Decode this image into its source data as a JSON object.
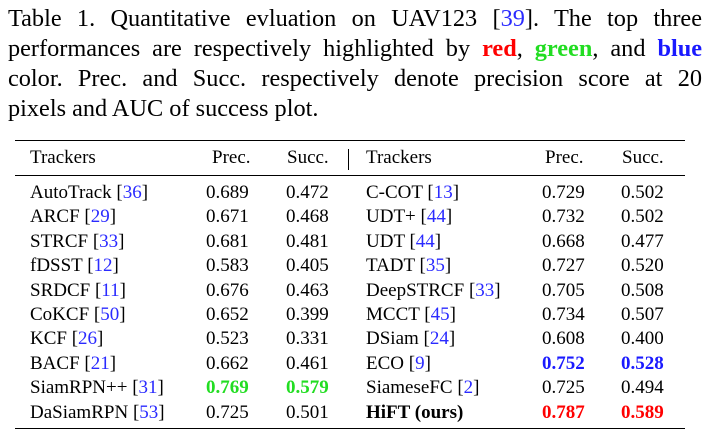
{
  "caption": {
    "line1": {
      "pre": "Table 1. Quantitative evluation on UAV123 [",
      "ref": "39",
      "post": "].  The top three"
    },
    "line2": {
      "pre": "performances are respectively highlighted by ",
      "red": "red",
      "sep1": ", ",
      "green": "green",
      "sep2": ", and ",
      "blue": "blue"
    },
    "line3": "color. Prec. and Succ. respectively denote precision score at 20",
    "line4": "pixels and AUC of success plot."
  },
  "colors": {
    "red": "#ff0000",
    "green": "#22dd22",
    "blue": "#1a1aff",
    "citation": "#2a2aff"
  },
  "header": {
    "trackers_left": "Trackers",
    "prec_left": "Prec.",
    "succ_left": "Succ.",
    "separator": "|",
    "trackers_right": "Trackers",
    "prec_right": "Prec.",
    "succ_right": "Succ."
  },
  "rows": [
    {
      "left": {
        "name": "AutoTrack",
        "ref": "36",
        "prec": "0.689",
        "succ": "0.472"
      },
      "right": {
        "name": "C-COT",
        "ref": "13",
        "prec": "0.729",
        "succ": "0.502"
      }
    },
    {
      "left": {
        "name": "ARCF",
        "ref": "29",
        "prec": "0.671",
        "succ": "0.468"
      },
      "right": {
        "name": "UDT+",
        "ref": "44",
        "prec": "0.732",
        "succ": "0.502"
      }
    },
    {
      "left": {
        "name": "STRCF",
        "ref": "33",
        "prec": "0.681",
        "succ": "0.481"
      },
      "right": {
        "name": "UDT",
        "ref": "44",
        "prec": "0.668",
        "succ": "0.477"
      }
    },
    {
      "left": {
        "name": "fDSST",
        "ref": "12",
        "prec": "0.583",
        "succ": "0.405"
      },
      "right": {
        "name": "TADT",
        "ref": "35",
        "prec": "0.727",
        "succ": "0.520"
      }
    },
    {
      "left": {
        "name": "SRDCF",
        "ref": "11",
        "prec": "0.676",
        "succ": "0.463"
      },
      "right": {
        "name": "DeepSTRCF",
        "ref": "33",
        "prec": "0.705",
        "succ": "0.508"
      }
    },
    {
      "left": {
        "name": "CoKCF",
        "ref": "50",
        "prec": "0.652",
        "succ": "0.399"
      },
      "right": {
        "name": "MCCT",
        "ref": "45",
        "prec": "0.734",
        "succ": "0.507"
      }
    },
    {
      "left": {
        "name": "KCF",
        "ref": "26",
        "prec": "0.523",
        "succ": "0.331"
      },
      "right": {
        "name": "DSiam",
        "ref": "24",
        "prec": "0.608",
        "succ": "0.400"
      }
    },
    {
      "left": {
        "name": "BACF",
        "ref": "21",
        "prec": "0.662",
        "succ": "0.461"
      },
      "right": {
        "name": "ECO",
        "ref": "9",
        "prec": "0.752",
        "succ": "0.528",
        "prec_hl": "blue",
        "succ_hl": "blue"
      }
    },
    {
      "left": {
        "name": "SiamRPN++",
        "ref": "31",
        "prec": "0.769",
        "succ": "0.579",
        "prec_hl": "green",
        "succ_hl": "green"
      },
      "right": {
        "name": "SiameseFC",
        "ref": "2",
        "prec": "0.725",
        "succ": "0.494"
      }
    },
    {
      "left": {
        "name": "DaSiamRPN",
        "ref": "53",
        "prec": "0.725",
        "succ": "0.501"
      },
      "right": {
        "name": "HiFT (ours)",
        "ref": "",
        "prec": "0.787",
        "succ": "0.589",
        "bold_name": true,
        "prec_hl": "red",
        "succ_hl": "red"
      }
    }
  ]
}
